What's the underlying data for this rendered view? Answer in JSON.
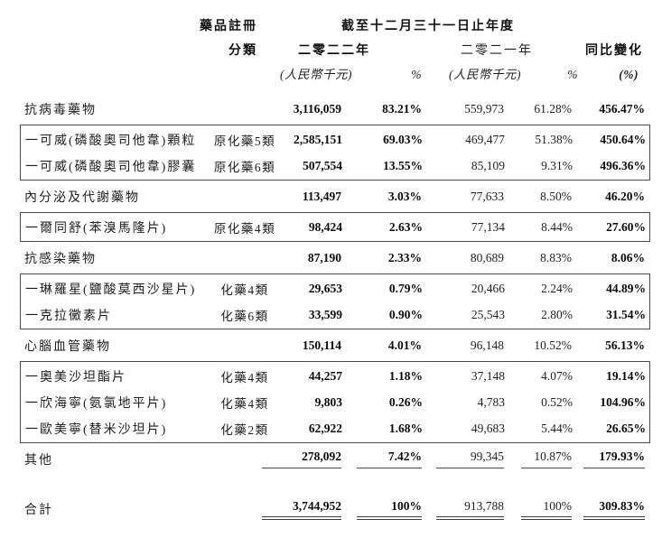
{
  "table": {
    "header": {
      "reg_class_line1": "藥品註冊",
      "reg_class_line2": "分類",
      "period_title": "截至十二月三十一日止年度",
      "year_2022": "二零二二年",
      "year_2021": "二零二一年",
      "yoy_label": "同比變化",
      "unit_2022": "(人民幣千元)",
      "pct_2022": "%",
      "unit_2021": "(人民幣千元)",
      "pct_2021": "%",
      "yoy_unit": "(%)"
    },
    "groups": [
      {
        "type": "section",
        "row": {
          "name": "抗病毒藥物",
          "reg_class": "",
          "v2022": "3,116,059",
          "p2022": "83.21%",
          "v2021": "559,973",
          "p2021": "61.28%",
          "yoy": "456.47%"
        }
      },
      {
        "type": "box",
        "rows": [
          {
            "name": "一可威(磷酸奧司他韋)顆粒",
            "reg_class": "原化藥5類",
            "v2022": "2,585,151",
            "p2022": "69.03%",
            "v2021": "469,477",
            "p2021": "51.38%",
            "yoy": "450.64%"
          },
          {
            "name": "一可威(磷酸奧司他韋)膠囊",
            "reg_class": "原化藥6類",
            "v2022": "507,554",
            "p2022": "13.55%",
            "v2021": "85,109",
            "p2021": "9.31%",
            "yoy": "496.36%"
          }
        ]
      },
      {
        "type": "section",
        "row": {
          "name": "內分泌及代謝藥物",
          "reg_class": "",
          "v2022": "113,497",
          "p2022": "3.03%",
          "v2021": "77,633",
          "p2021": "8.50%",
          "yoy": "46.20%"
        }
      },
      {
        "type": "box",
        "rows": [
          {
            "name": "一爾同舒(苯溴馬隆片)",
            "reg_class": "原化藥4類",
            "v2022": "98,424",
            "p2022": "2.63%",
            "v2021": "77,134",
            "p2021": "8.44%",
            "yoy": "27.60%"
          }
        ]
      },
      {
        "type": "section",
        "row": {
          "name": "抗感染藥物",
          "reg_class": "",
          "v2022": "87,190",
          "p2022": "2.33%",
          "v2021": "80,689",
          "p2021": "8.83%",
          "yoy": "8.06%"
        }
      },
      {
        "type": "box",
        "rows": [
          {
            "name": "一琳羅星(鹽酸莫西沙星片)",
            "reg_class": "化藥4類",
            "v2022": "29,653",
            "p2022": "0.79%",
            "v2021": "20,466",
            "p2021": "2.24%",
            "yoy": "44.89%"
          },
          {
            "name": "一克拉黴素片",
            "reg_class": "化藥6類",
            "v2022": "33,599",
            "p2022": "0.90%",
            "v2021": "25,543",
            "p2021": "2.80%",
            "yoy": "31.54%"
          }
        ]
      },
      {
        "type": "section",
        "row": {
          "name": "心腦血管藥物",
          "reg_class": "",
          "v2022": "150,114",
          "p2022": "4.01%",
          "v2021": "96,148",
          "p2021": "10.52%",
          "yoy": "56.13%"
        }
      },
      {
        "type": "box",
        "rows": [
          {
            "name": "一奧美沙坦酯片",
            "reg_class": "化藥4類",
            "v2022": "44,257",
            "p2022": "1.18%",
            "v2021": "37,148",
            "p2021": "4.07%",
            "yoy": "19.14%"
          },
          {
            "name": "一欣海寧(氨氯地平片)",
            "reg_class": "化藥4類",
            "v2022": "9,803",
            "p2022": "0.26%",
            "v2021": "4,783",
            "p2021": "0.52%",
            "yoy": "104.96%"
          },
          {
            "name": "一歐美寧(替米沙坦片)",
            "reg_class": "化藥2類",
            "v2022": "62,922",
            "p2022": "1.68%",
            "v2021": "49,683",
            "p2021": "5.44%",
            "yoy": "26.65%"
          }
        ]
      },
      {
        "type": "other",
        "row": {
          "name": "其他",
          "reg_class": "",
          "v2022": "278,092",
          "p2022": "7.42%",
          "v2021": "99,345",
          "p2021": "10.87%",
          "yoy": "179.93%"
        }
      },
      {
        "type": "total",
        "row": {
          "name": "合計",
          "reg_class": "",
          "v2022": "3,744,952",
          "p2022": "100%",
          "v2021": "913,788",
          "p2021": "100%",
          "yoy": "309.83%"
        }
      }
    ]
  }
}
